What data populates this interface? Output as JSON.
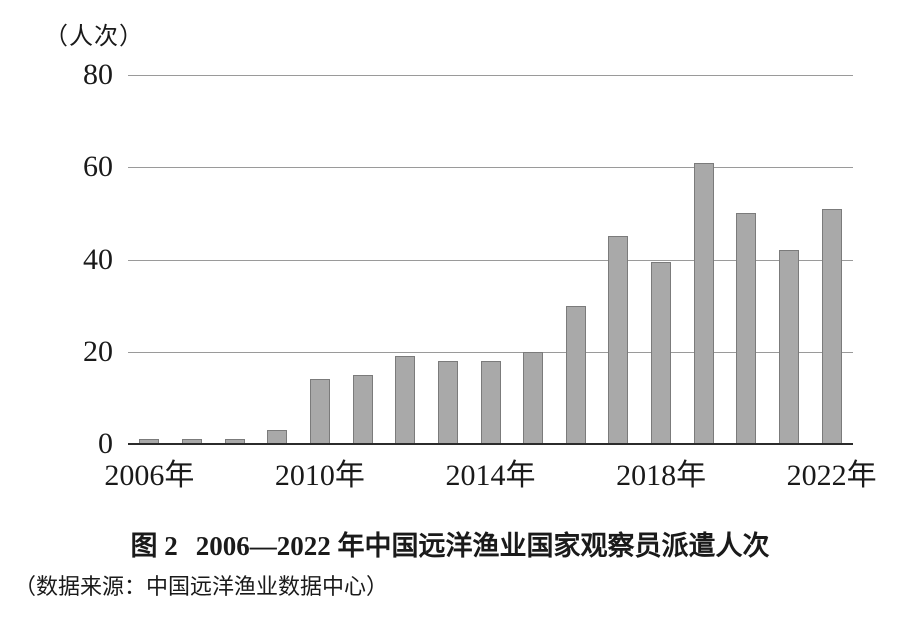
{
  "page": {
    "background": "#ffffff"
  },
  "chart_data": {
    "type": "bar",
    "unit_label": "（人次）",
    "categories": [
      "2006",
      "2007",
      "2008",
      "2009",
      "2010",
      "2011",
      "2012",
      "2013",
      "2014",
      "2015",
      "2016",
      "2017",
      "2018",
      "2019",
      "2020",
      "2021",
      "2022"
    ],
    "values": [
      1,
      1,
      1,
      3,
      14,
      15,
      19,
      18,
      18,
      20,
      30,
      45,
      39.5,
      61,
      50,
      42,
      51
    ],
    "x_ticks": [
      {
        "index": 0,
        "label": "2006年"
      },
      {
        "index": 4,
        "label": "2010年"
      },
      {
        "index": 8,
        "label": "2014年"
      },
      {
        "index": 12,
        "label": "2018年"
      },
      {
        "index": 16,
        "label": "2022年"
      }
    ],
    "yticks": [
      0,
      20,
      40,
      60,
      80
    ],
    "ylim": [
      0,
      80
    ],
    "grid": "horizontal",
    "legend": "none",
    "bar_fill": "#a9a9a9",
    "bar_border": "#7b7b7b",
    "gridline_color": "#9a9a9a",
    "axis_color": "#2b2b2b",
    "text_color": "#1a1a1a"
  },
  "caption": {
    "figure_label": "图 2",
    "title": "2006—2022 年中国远洋渔业国家观察员派遣人次"
  },
  "source_note": "（数据来源：中国远洋渔业数据中心）"
}
